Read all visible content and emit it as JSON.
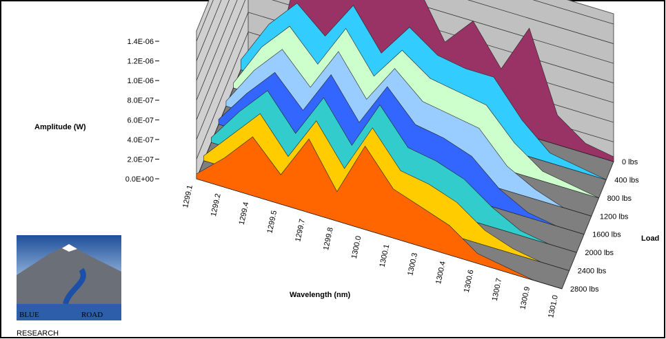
{
  "chart_data": {
    "type": "area3d",
    "y_label": "Amplitude (W)",
    "x_label": "Wavelength (nm)",
    "z_label": "Load",
    "categories": [
      "1299.1",
      "1299.2",
      "1299.4",
      "1299.5",
      "1299.7",
      "1299.8",
      "1300.0",
      "1300.1",
      "1300.3",
      "1300.4",
      "1300.6",
      "1300.7",
      "1300.9",
      "1301.0"
    ],
    "ylim": [
      0,
      1.4e-06
    ],
    "yticks": [
      {
        "value": 0,
        "label": "0.0E+00"
      },
      {
        "value": 2e-07,
        "label": "2.0E-07"
      },
      {
        "value": 4e-07,
        "label": "4.0E-07"
      },
      {
        "value": 6e-07,
        "label": "6.0E-07"
      },
      {
        "value": 8e-07,
        "label": "8.0E-07"
      },
      {
        "value": 1e-06,
        "label": "1.0E-06"
      },
      {
        "value": 1.2e-06,
        "label": "1.2E-06"
      },
      {
        "value": 1.4e-06,
        "label": "1.4E-06"
      }
    ],
    "grid": true,
    "series": [
      {
        "name": "0 lbs",
        "color": "#993366",
        "values": [
          0,
          2e-08,
          1.3e-06,
          9e-07,
          1e-06,
          1.4e-06,
          1.2e-06,
          7e-07,
          1e-06,
          6e-07,
          1.1e-06,
          3e-07,
          1e-07,
          5e-08
        ]
      },
      {
        "name": "400 lbs",
        "color": "#33ccff",
        "values": [
          1e-07,
          5.5e-07,
          8.5e-07,
          6e-07,
          1e-06,
          6e-07,
          9.5e-07,
          7.5e-07,
          7e-07,
          7e-07,
          3.5e-07,
          1e-07,
          5e-08,
          0
        ]
      },
      {
        "name": "800 lbs",
        "color": "#ccffcc",
        "values": [
          5e-08,
          5e-07,
          8e-07,
          5e-07,
          9.5e-07,
          5.5e-07,
          9e-07,
          7e-07,
          6.5e-07,
          6e-07,
          3e-07,
          1e-07,
          5e-08,
          0
        ]
      },
      {
        "name": "1200 lbs",
        "color": "#99ccff",
        "values": [
          5e-08,
          4.5e-07,
          7.5e-07,
          4.5e-07,
          9e-07,
          5e-07,
          9e-07,
          6.5e-07,
          6e-07,
          5.5e-07,
          2.5e-07,
          1e-07,
          0,
          0
        ]
      },
      {
        "name": "1600 lbs",
        "color": "#3366ff",
        "values": [
          5e-08,
          4e-07,
          7e-07,
          4e-07,
          8.5e-07,
          4.5e-07,
          9e-07,
          6e-07,
          5.5e-07,
          4.5e-07,
          2e-07,
          5e-08,
          0,
          0
        ]
      },
      {
        "name": "2000 lbs",
        "color": "#33cccc",
        "values": [
          5e-08,
          4e-07,
          7e-07,
          3.5e-07,
          8e-07,
          4e-07,
          9e-07,
          5.5e-07,
          5e-07,
          4e-07,
          2e-07,
          5e-08,
          0,
          0
        ]
      },
      {
        "name": "2400 lbs",
        "color": "#ffcc00",
        "values": [
          5e-08,
          3.5e-07,
          6.5e-07,
          3e-07,
          7.5e-07,
          3.5e-07,
          8.5e-07,
          5e-07,
          4.5e-07,
          3.5e-07,
          1.5e-07,
          5e-08,
          0,
          0
        ]
      },
      {
        "name": "2800 lbs",
        "color": "#ff6600",
        "values": [
          5e-08,
          3e-07,
          6e-07,
          3e-07,
          7.5e-07,
          3e-07,
          8.5e-07,
          5e-07,
          4e-07,
          3e-07,
          1e-07,
          5e-08,
          0,
          0
        ]
      }
    ]
  },
  "logo": {
    "word1": "BLUE",
    "word2": "ROAD",
    "word3": "RESEARCH"
  }
}
